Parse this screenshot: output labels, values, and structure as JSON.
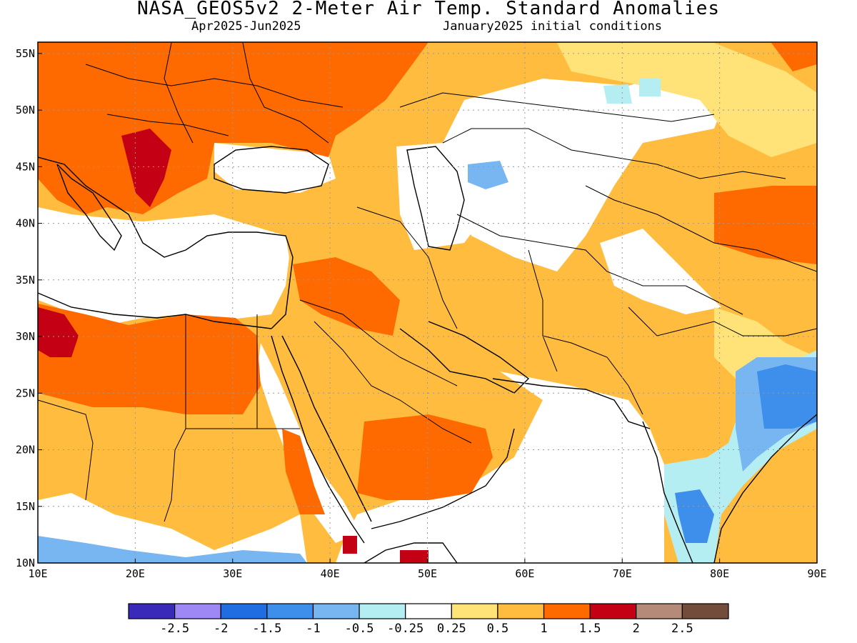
{
  "title": "NASA_GEOS5v2 2-Meter Air Temp. Standard Anomalies",
  "period": "Apr2025-Jun2025",
  "initial_conditions": "January2025 initial conditions",
  "map": {
    "lon_range": [
      10,
      90
    ],
    "lat_range": [
      10,
      56
    ],
    "lon_ticks": [
      "10E",
      "20E",
      "30E",
      "40E",
      "50E",
      "60E",
      "70E",
      "80E",
      "90E"
    ],
    "lat_ticks": [
      "10N",
      "15N",
      "20N",
      "25N",
      "30N",
      "35N",
      "40N",
      "45N",
      "50N",
      "55N"
    ],
    "grid": true
  },
  "colorbar": {
    "colors": [
      "#3a2aba",
      "#9e88f5",
      "#1f6de0",
      "#3e8eeb",
      "#78b6f2",
      "#b4eef2",
      "#ffffff",
      "#ffe378",
      "#ffbc3e",
      "#ff6a00",
      "#c40014",
      "#b58a78",
      "#744c3c"
    ],
    "labels": [
      "-2.5",
      "-2",
      "-1.5",
      "-1",
      "-0.5",
      "-0.25",
      "0.25",
      "0.5",
      "1",
      "1.5",
      "2",
      "2.5"
    ]
  },
  "anomaly_regions": [
    {
      "name": "europe-warm",
      "level": "1.5"
    },
    {
      "name": "balkans-hot",
      "level": "2"
    },
    {
      "name": "libya-hot",
      "level": "2"
    },
    {
      "name": "arabia-warm",
      "level": "1"
    },
    {
      "name": "india-cool",
      "level": "-1"
    },
    {
      "name": "bay-of-bengal-cool",
      "level": "-1.5"
    }
  ]
}
